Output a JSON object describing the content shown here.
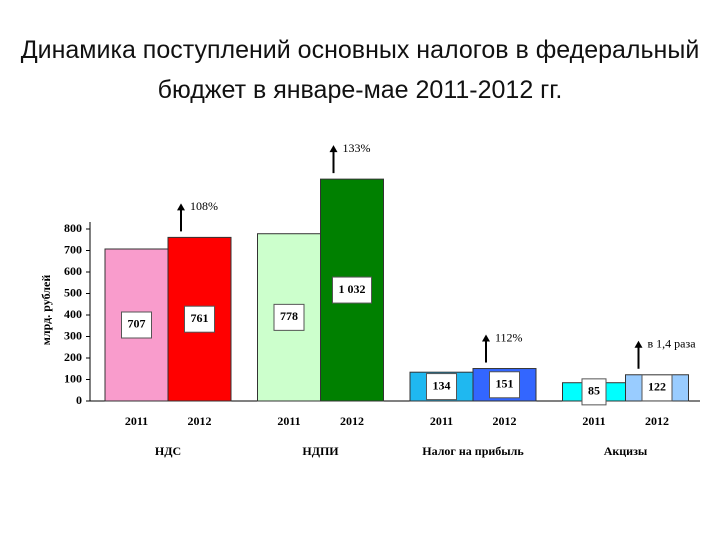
{
  "chart_data": {
    "type": "bar",
    "title": "Динамика поступлений основных налогов в федеральный бюджет в январе-мае 2011-2012 гг.",
    "y_label": "млрд. рублей",
    "categories": [
      "НДС",
      "НДПИ",
      "Налог на прибыль",
      "Акцизы"
    ],
    "series": [
      {
        "name": "2011",
        "values": [
          707,
          778,
          134,
          85
        ],
        "value_labels": [
          "707",
          "778",
          "134",
          "85"
        ],
        "colors": [
          "#f99ccc",
          "#ccffcc",
          "#1fb8f0",
          "#00ffff"
        ]
      },
      {
        "name": "2012",
        "values": [
          761,
          1032,
          151,
          122
        ],
        "value_labels": [
          "761",
          "1 032",
          "151",
          "122"
        ],
        "colors": [
          "#ff0000",
          "#008000",
          "#3366ff",
          "#99ccff"
        ]
      }
    ],
    "annotations": [
      "108%",
      "133%",
      "112%",
      "в 1,4 раза"
    ],
    "ylim": [
      0,
      800
    ],
    "yticks": [
      0,
      100,
      200,
      300,
      400,
      500,
      600,
      700,
      800
    ]
  }
}
